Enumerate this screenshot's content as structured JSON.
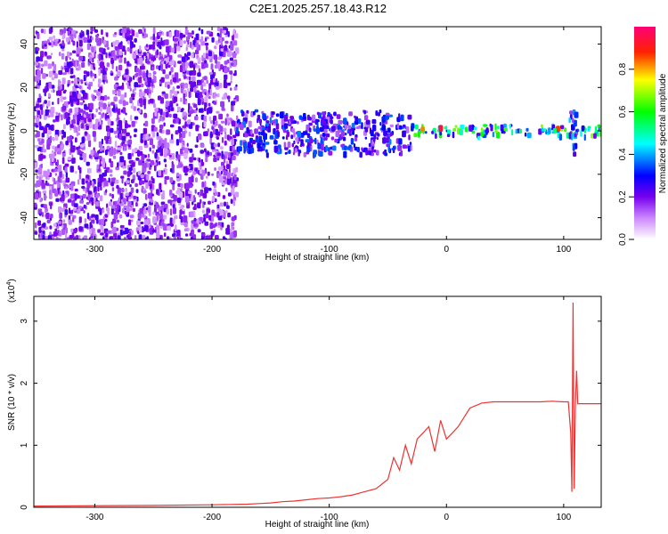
{
  "figure_title": "C2E1.2025.257.18.43.R12",
  "chart_data": [
    {
      "type": "heatmap",
      "xlabel": "Height of straight line (km)",
      "ylabel": "Frequency (Hz)",
      "xlim": [
        -352,
        132
      ],
      "ylim": [
        -50,
        48
      ],
      "xticks": [
        -300,
        -200,
        -100,
        0,
        100
      ],
      "yticks": [
        -40,
        -20,
        0,
        20,
        40
      ],
      "colorbar": {
        "label": "Normalized spectral amplitude",
        "ticks": [
          "0.0",
          "0.2",
          "0.4",
          "0.6",
          "0.8"
        ],
        "range": [
          0,
          1
        ]
      },
      "regions": [
        {
          "x_range": [
            -352,
            -180
          ],
          "y_range": [
            -50,
            48
          ],
          "level": 0.2
        },
        {
          "x_range": [
            -180,
            -30
          ],
          "y_range": [
            -10,
            10
          ],
          "level": 0.3
        },
        {
          "x_range": [
            -30,
            132
          ],
          "y_range": [
            -1.5,
            3.5
          ],
          "level": 0.55
        },
        {
          "x_range": [
            -28,
            -20
          ],
          "y_range": [
            1,
            3
          ],
          "level": 0.85
        },
        {
          "x_range": [
            -10,
            -2
          ],
          "y_range": [
            1,
            3
          ],
          "level": 0.9
        },
        {
          "x_range": [
            90,
            100
          ],
          "y_range": [
            1,
            3
          ],
          "level": 0.8
        },
        {
          "x_range": [
            104,
            110
          ],
          "y_range": [
            -10,
            10
          ],
          "level": 0.35
        }
      ]
    },
    {
      "type": "line",
      "xlabel": "Height of straight line (km)",
      "ylabel": "SNR (10 * v/v)",
      "y_multiplier": "(x10",
      "y_multiplier_exp": "4",
      "xlim": [
        -352,
        132
      ],
      "ylim": [
        0,
        3.4
      ],
      "xticks": [
        -300,
        -200,
        -100,
        0,
        100
      ],
      "yticks": [
        0,
        1,
        2,
        3
      ],
      "series": [
        {
          "color": "#ee3333",
          "x": [
            -352,
            -250,
            -200,
            -170,
            -160,
            -150,
            -140,
            -130,
            -120,
            -110,
            -100,
            -90,
            -80,
            -70,
            -60,
            -50,
            -45,
            -40,
            -35,
            -30,
            -25,
            -20,
            -15,
            -10,
            -5,
            0,
            5,
            10,
            15,
            20,
            30,
            40,
            50,
            60,
            70,
            80,
            90,
            100,
            104,
            106,
            107,
            108,
            109,
            110,
            111,
            112,
            115,
            120,
            132
          ],
          "y": [
            0.02,
            0.03,
            0.04,
            0.05,
            0.06,
            0.07,
            0.09,
            0.1,
            0.12,
            0.14,
            0.15,
            0.17,
            0.2,
            0.25,
            0.3,
            0.45,
            0.8,
            0.6,
            1.0,
            0.7,
            1.1,
            1.2,
            1.3,
            0.9,
            1.4,
            1.1,
            1.2,
            1.3,
            1.45,
            1.6,
            1.68,
            1.7,
            1.7,
            1.7,
            1.7,
            1.7,
            1.71,
            1.7,
            1.7,
            1.2,
            0.25,
            3.3,
            0.3,
            1.65,
            2.2,
            1.67,
            1.67,
            1.67,
            1.67
          ]
        }
      ]
    }
  ]
}
